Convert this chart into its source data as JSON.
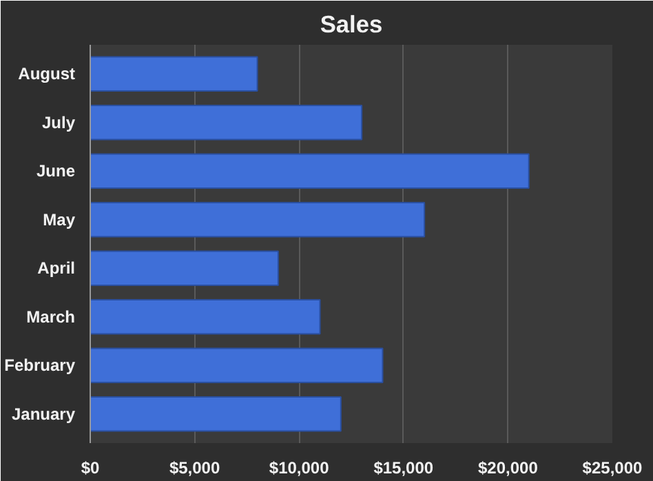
{
  "chart_data": {
    "type": "bar",
    "orientation": "horizontal",
    "title": "Sales",
    "categories": [
      "August",
      "July",
      "June",
      "May",
      "April",
      "March",
      "February",
      "January"
    ],
    "values": [
      8000,
      13000,
      21000,
      16000,
      9000,
      11000,
      14000,
      12000
    ],
    "color": "#3f6fd8",
    "xlim": [
      0,
      25000
    ],
    "xticks": [
      {
        "value": 0,
        "label": "$0"
      },
      {
        "value": 5000,
        "label": "$5,000"
      },
      {
        "value": 10000,
        "label": "$10,000"
      },
      {
        "value": 15000,
        "label": "$15,000"
      },
      {
        "value": 20000,
        "label": "$20,000"
      },
      {
        "value": 25000,
        "label": "$25,000"
      }
    ],
    "grid": "x"
  }
}
